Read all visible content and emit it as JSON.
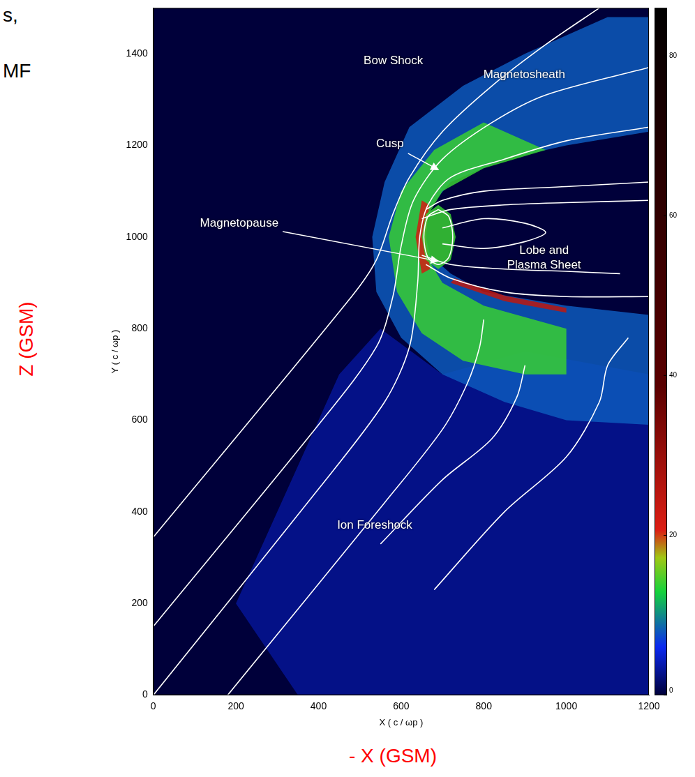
{
  "chart_data": {
    "type": "line",
    "xlabel": "X ( c / ωp )",
    "ylabel": "Y ( c / ωp )",
    "xlim": [
      0,
      1200
    ],
    "xticks": [
      0,
      200,
      400,
      600,
      800,
      1000,
      1200
    ],
    "ylim": [
      0,
      1500
    ],
    "yticks": [
      0,
      200,
      400,
      600,
      800,
      1000,
      1200,
      1400
    ],
    "grid": false,
    "series": [
      {
        "color": "#ffffff",
        "x": [
          0,
          480,
          540,
          580,
          620,
          700,
          820,
          950,
          1080
        ],
        "y": [
          345,
          870,
          950,
          1050,
          1130,
          1230,
          1330,
          1420,
          1500
        ]
      },
      {
        "color": "#ffffff",
        "x": [
          0,
          400,
          540,
          580,
          600,
          630,
          700,
          820,
          950,
          1200
        ],
        "y": [
          150,
          590,
          760,
          870,
          980,
          1080,
          1170,
          1250,
          1310,
          1370
        ]
      },
      {
        "color": "#ffffff",
        "x": [
          0,
          400,
          560,
          620,
          640,
          645,
          665,
          720,
          850,
          1000,
          1200
        ],
        "y": [
          0,
          450,
          640,
          760,
          900,
          1000,
          1070,
          1130,
          1170,
          1210,
          1240
        ]
      },
      {
        "color": "#ffffff",
        "x": [
          180,
          560,
          700,
          760,
          790,
          800
        ],
        "y": [
          0,
          420,
          580,
          680,
          760,
          820
        ]
      },
      {
        "color": "#ffffff",
        "x": [
          550,
          700,
          820,
          880,
          900
        ],
        "y": [
          330,
          470,
          560,
          650,
          720
        ]
      },
      {
        "color": "#ffffff",
        "x": [
          680,
          850,
          1000,
          1080,
          1100,
          1150
        ],
        "y": [
          230,
          400,
          520,
          640,
          720,
          780
        ]
      },
      {
        "color": "#ffffff",
        "x": [
          660,
          700,
          800,
          1000,
          1200
        ],
        "y": [
          1060,
          1080,
          1100,
          1110,
          1120
        ]
      },
      {
        "color": "#ffffff",
        "x": [
          650,
          720,
          850,
          1000,
          1200
        ],
        "y": [
          1040,
          1060,
          1070,
          1075,
          1080
        ]
      },
      {
        "color": "#ffffff",
        "x": [
          660,
          720,
          850,
          1000,
          1200
        ],
        "y": [
          940,
          910,
          880,
          870,
          870
        ]
      },
      {
        "color": "#ffffff",
        "x": [
          650,
          720,
          850,
          1000,
          1130
        ],
        "y": [
          960,
          940,
          930,
          925,
          920
        ]
      },
      {
        "color": "#ffffff",
        "x": [
          700,
          800,
          900,
          950,
          900,
          800,
          700
        ],
        "y": [
          1020,
          1040,
          1030,
          1010,
          990,
          975,
          985
        ]
      },
      {
        "color": "#ffffff",
        "x": [
          690,
          665,
          655,
          665,
          690,
          715,
          725,
          715,
          690
        ],
        "y": [
          1060,
          1045,
          1000,
          955,
          940,
          955,
          1000,
          1045,
          1060
        ]
      }
    ],
    "density_regions": [
      {
        "density": 3,
        "x": [
          350,
          1200,
          1200,
          900,
          700,
          550,
          450,
          200
        ],
        "y": [
          0,
          0,
          700,
          750,
          700,
          800,
          700,
          200
        ]
      },
      {
        "density": 8,
        "x": [
          1100,
          900,
          750,
          620,
          560,
          530,
          540,
          600,
          700,
          850,
          1000,
          1200,
          1200,
          1000,
          800,
          720,
          670,
          660,
          665,
          720,
          850,
          1000,
          1200,
          1200
        ],
        "y": [
          1480,
          1400,
          1330,
          1240,
          1120,
          1000,
          880,
          780,
          700,
          640,
          600,
          590,
          830,
          850,
          880,
          920,
          960,
          1000,
          1060,
          1120,
          1170,
          1200,
          1230,
          1480
        ]
      },
      {
        "density": 14,
        "x": [
          800,
          680,
          600,
          570,
          590,
          650,
          750,
          900,
          1000,
          1000,
          800,
          700,
          660,
          660,
          700,
          800,
          950
        ],
        "y": [
          1250,
          1190,
          1100,
          1000,
          880,
          790,
          730,
          700,
          700,
          800,
          850,
          900,
          960,
          1040,
          1100,
          1150,
          1190
        ]
      },
      {
        "density": 22,
        "x": [
          650,
          635,
          650,
          670,
          660,
          668
        ],
        "y": [
          1080,
          1000,
          920,
          930,
          1000,
          1070
        ]
      },
      {
        "density": 14,
        "x": [
          690,
          660,
          650,
          660,
          690,
          720,
          732,
          720
        ],
        "y": [
          1070,
          1050,
          1000,
          950,
          930,
          950,
          1000,
          1050
        ]
      },
      {
        "density": 25,
        "x": [
          720,
          850,
          1000,
          1000,
          850,
          730
        ],
        "y": [
          900,
          860,
          835,
          845,
          872,
          910
        ]
      }
    ],
    "colorbar": {
      "range": [
        0,
        86
      ],
      "ticks": [
        0,
        20,
        40,
        60,
        80
      ]
    },
    "annotations": [
      {
        "text": "Bow Shock",
        "x": 581,
        "y": 1385
      },
      {
        "text": "Magnetosheath",
        "x": 898,
        "y": 1354
      },
      {
        "text": "Cusp",
        "x": 573,
        "y": 1204,
        "arrow_to": [
          692,
          1146
        ]
      },
      {
        "text": "Magnetopause",
        "x": 208,
        "y": 1030,
        "arrow_to": [
          692,
          947
        ]
      },
      {
        "text": "Lobe and Plasma Sheet",
        "x": 946,
        "y": 955
      },
      {
        "text": "Ion Foreshock",
        "x": 536,
        "y": 371
      }
    ],
    "axis_notes": [
      {
        "text": "Z (GSM)",
        "color": "#ff0000"
      },
      {
        "text": "- X (GSM)",
        "color": "#ff0000"
      }
    ],
    "fragments": [
      "s,",
      "MF"
    ]
  }
}
